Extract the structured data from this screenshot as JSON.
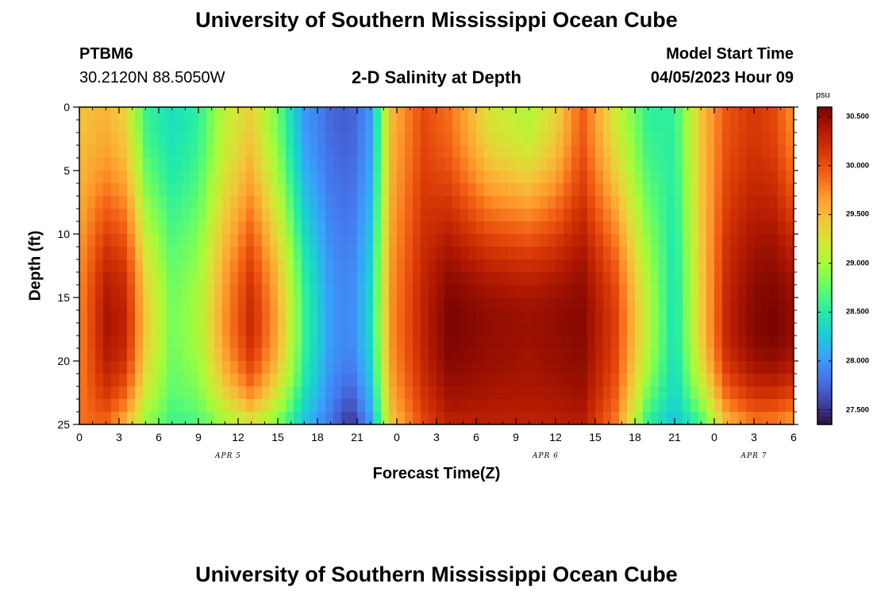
{
  "header": {
    "title": "University of Southern Mississippi Ocean Cube",
    "station_id": "PTBM6",
    "station_coords": "30.2120N  88.5050W",
    "subtitle": "2-D Salinity at Depth",
    "model_start_label": "Model Start Time",
    "model_start_value": "04/05/2023 Hour 09"
  },
  "footer": {
    "title": "University of Southern Mississippi Ocean Cube"
  },
  "colors": {
    "scale": [
      "#30123b",
      "#4145ab",
      "#4675ed",
      "#39a2fc",
      "#1bcfd4",
      "#24eca6",
      "#61fc6c",
      "#a4fc3b",
      "#d1e834",
      "#f3c63a",
      "#fe9b2d",
      "#f36315",
      "#d93806",
      "#b11901",
      "#7a0402"
    ]
  },
  "chart_data": {
    "type": "heatmap",
    "title": "2-D Salinity at Depth",
    "xlabel": "Forecast Time(Z)",
    "ylabel": "Depth (ft)",
    "x_ticks": [
      "0",
      "3",
      "6",
      "9",
      "12",
      "15",
      "18",
      "21",
      "0",
      "3",
      "6",
      "9",
      "12",
      "15",
      "18",
      "21",
      "0",
      "3",
      "6"
    ],
    "x_range_hours": [
      0,
      54
    ],
    "y_ticks": [
      "0",
      "5",
      "10",
      "15",
      "20",
      "25"
    ],
    "ylim": [
      0,
      25
    ],
    "date_labels": [
      {
        "label": "APR 5",
        "hour": 11.25
      },
      {
        "label": "APR 6",
        "hour": 35.25
      },
      {
        "label": "APR 7",
        "hour": 51
      }
    ],
    "colorbar": {
      "unit": "psu",
      "ticks": [
        "30.500",
        "30.000",
        "29.500",
        "29.000",
        "28.500",
        "28.000",
        "27.500"
      ],
      "tick_values": [
        30.5,
        30.0,
        29.5,
        29.0,
        28.5,
        28.0,
        27.5
      ],
      "range": [
        27.35,
        30.6
      ]
    },
    "salinity_model": {
      "description": "Approximate salinity (psu) by forecast hour; columns give surface (depth 0 ft), near-bottom core (~17 ft) and bottom (25 ft) values",
      "hours": [
        0,
        2,
        3.5,
        5,
        7,
        9,
        11,
        13,
        15,
        17,
        19,
        20.5,
        22,
        23.5,
        26,
        28,
        31,
        34,
        36,
        38,
        40.5,
        43,
        45,
        47,
        49,
        51,
        52.5,
        54
      ],
      "surface": [
        29.45,
        29.55,
        29.35,
        28.6,
        28.4,
        28.55,
        29.1,
        29.4,
        28.8,
        28.0,
        27.75,
        27.7,
        28.0,
        29.5,
        30.05,
        29.85,
        29.25,
        29.05,
        29.35,
        29.95,
        29.2,
        28.55,
        28.55,
        29.45,
        30.0,
        30.15,
        30.05,
        29.7
      ],
      "core": [
        29.75,
        30.4,
        30.3,
        29.4,
        28.8,
        29.0,
        29.7,
        30.25,
        29.6,
        28.6,
        28.0,
        27.9,
        28.35,
        29.7,
        30.3,
        30.6,
        30.5,
        30.45,
        30.5,
        30.55,
        30.1,
        29.05,
        28.4,
        29.4,
        30.3,
        30.55,
        30.6,
        30.5
      ],
      "bottom": [
        29.85,
        29.9,
        29.5,
        28.9,
        28.6,
        28.65,
        28.95,
        29.2,
        28.8,
        28.2,
        27.8,
        27.45,
        28.0,
        29.4,
        30.05,
        30.3,
        30.3,
        30.3,
        30.3,
        30.35,
        29.8,
        28.5,
        28.2,
        28.6,
        29.5,
        29.8,
        29.75,
        29.6
      ]
    }
  }
}
